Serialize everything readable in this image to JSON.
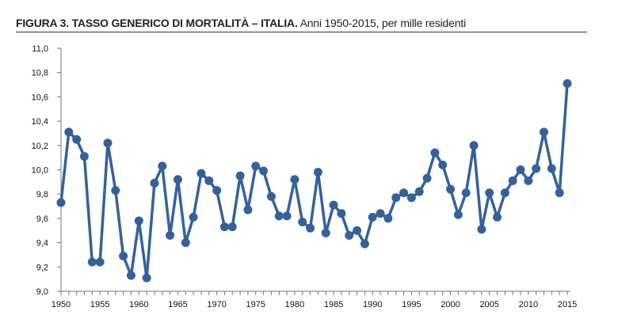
{
  "chart_data": {
    "type": "line",
    "title": "FIGURA 3. TASSO GENERICO DI MORTALITÀ – ITALIA.",
    "subtitle": "Anni 1950-2015, per mille residenti",
    "xlabel": "",
    "ylabel": "",
    "xlim": [
      1950,
      2015
    ],
    "ylim": [
      9.0,
      11.0
    ],
    "x_ticks": [
      "1950",
      "1955",
      "1960",
      "1965",
      "1970",
      "1975",
      "1980",
      "1985",
      "1990",
      "1995",
      "2000",
      "2005",
      "2010",
      "2015"
    ],
    "y_ticks": [
      "9,0",
      "9,2",
      "9,4",
      "9,6",
      "9,8",
      "10,0",
      "10,2",
      "10,4",
      "10,6",
      "10,8",
      "11,0"
    ],
    "grid": false,
    "color": "#35619b",
    "series": [
      {
        "name": "Tasso generico di mortalità",
        "x": [
          1950,
          1951,
          1952,
          1953,
          1954,
          1955,
          1956,
          1957,
          1958,
          1959,
          1960,
          1961,
          1962,
          1963,
          1964,
          1965,
          1966,
          1967,
          1968,
          1969,
          1970,
          1971,
          1972,
          1973,
          1974,
          1975,
          1976,
          1977,
          1978,
          1979,
          1980,
          1981,
          1982,
          1983,
          1984,
          1985,
          1986,
          1987,
          1988,
          1989,
          1990,
          1991,
          1992,
          1993,
          1994,
          1995,
          1996,
          1997,
          1998,
          1999,
          2000,
          2001,
          2002,
          2003,
          2004,
          2005,
          2006,
          2007,
          2008,
          2009,
          2010,
          2011,
          2012,
          2013,
          2014,
          2015
        ],
        "values": [
          9.73,
          10.31,
          10.25,
          10.11,
          9.24,
          9.24,
          10.22,
          9.83,
          9.29,
          9.13,
          9.58,
          9.11,
          9.89,
          10.03,
          9.46,
          9.92,
          9.4,
          9.61,
          9.97,
          9.91,
          9.83,
          9.53,
          9.53,
          9.95,
          9.67,
          10.03,
          9.99,
          9.78,
          9.62,
          9.62,
          9.92,
          9.57,
          9.52,
          9.98,
          9.48,
          9.71,
          9.64,
          9.46,
          9.5,
          9.39,
          9.61,
          9.64,
          9.6,
          9.77,
          9.81,
          9.77,
          9.82,
          9.93,
          10.14,
          10.04,
          9.84,
          9.63,
          9.81,
          10.2,
          9.51,
          9.81,
          9.61,
          9.81,
          9.91,
          10.0,
          9.91,
          10.01,
          10.31,
          10.01,
          9.81,
          10.71
        ]
      }
    ]
  }
}
